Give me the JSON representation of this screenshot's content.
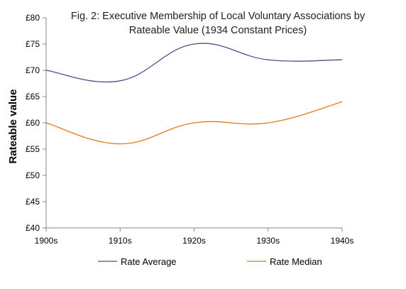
{
  "chart_data": {
    "type": "line",
    "title_lines": [
      "Fig. 2: Executive Membership of Local Voluntary Associations by",
      "Rateable Value (1934 Constant Prices)"
    ],
    "ylabel": "Rateable value",
    "xlabel": "",
    "categories": [
      "1900s",
      "1910s",
      "1920s",
      "1930s",
      "1940s"
    ],
    "ylim": [
      40,
      80
    ],
    "yticks": [
      40,
      45,
      50,
      55,
      60,
      65,
      70,
      75,
      80
    ],
    "ytick_prefix": "£",
    "grid": false,
    "legend_position": "bottom",
    "series": [
      {
        "name": "Rate Average",
        "values": [
          70,
          68,
          75,
          72,
          72
        ],
        "color": "#4f4f8a"
      },
      {
        "name": "Rate Median",
        "values": [
          60,
          56,
          60,
          60,
          64
        ],
        "color": "#e07b1a"
      }
    ]
  }
}
